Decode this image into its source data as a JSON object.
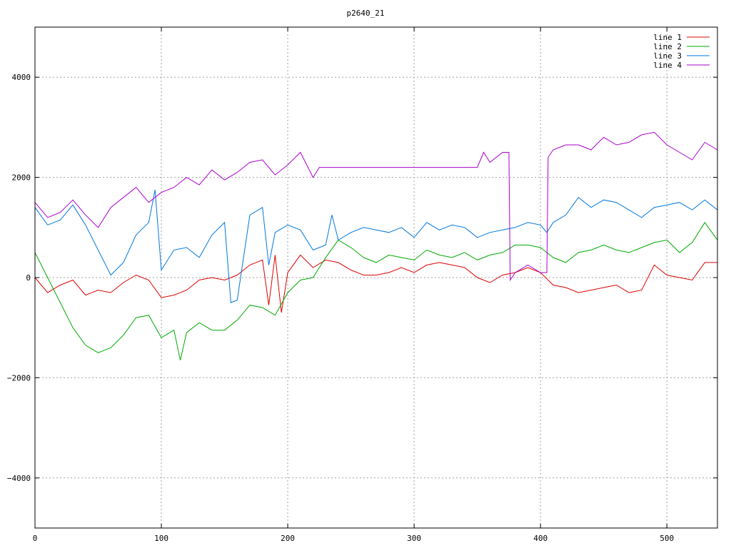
{
  "chart_data": {
    "type": "line",
    "title": "p2640_21",
    "xlabel": "",
    "ylabel": "",
    "xlim": [
      0,
      540
    ],
    "ylim": [
      -5000,
      5000
    ],
    "grid": true,
    "legend_position": "top-right",
    "x_ticks": [
      0,
      100,
      200,
      300,
      400,
      500
    ],
    "y_ticks": [
      -4000,
      -2000,
      0,
      2000,
      4000
    ],
    "x_tick_labels": [
      "0",
      "100",
      "200",
      "300",
      "400",
      "500"
    ],
    "y_tick_labels": [
      "−4000",
      "−2000",
      "0",
      "2000",
      "4000"
    ],
    "series": [
      {
        "name": "line 1",
        "color": "#dd0000",
        "points": [
          [
            0,
            0
          ],
          [
            10,
            -300
          ],
          [
            20,
            -150
          ],
          [
            30,
            -50
          ],
          [
            40,
            -350
          ],
          [
            50,
            -250
          ],
          [
            60,
            -300
          ],
          [
            70,
            -100
          ],
          [
            80,
            50
          ],
          [
            90,
            -50
          ],
          [
            100,
            -400
          ],
          [
            110,
            -350
          ],
          [
            120,
            -250
          ],
          [
            130,
            -50
          ],
          [
            140,
            0
          ],
          [
            150,
            -50
          ],
          [
            160,
            50
          ],
          [
            170,
            250
          ],
          [
            180,
            350
          ],
          [
            185,
            -550
          ],
          [
            190,
            450
          ],
          [
            195,
            -700
          ],
          [
            200,
            100
          ],
          [
            210,
            450
          ],
          [
            220,
            200
          ],
          [
            230,
            350
          ],
          [
            240,
            300
          ],
          [
            250,
            150
          ],
          [
            260,
            50
          ],
          [
            270,
            50
          ],
          [
            280,
            100
          ],
          [
            290,
            200
          ],
          [
            300,
            100
          ],
          [
            310,
            250
          ],
          [
            320,
            300
          ],
          [
            330,
            250
          ],
          [
            340,
            200
          ],
          [
            350,
            0
          ],
          [
            360,
            -100
          ],
          [
            370,
            50
          ],
          [
            380,
            100
          ],
          [
            390,
            200
          ],
          [
            400,
            100
          ],
          [
            410,
            -150
          ],
          [
            420,
            -200
          ],
          [
            430,
            -300
          ],
          [
            440,
            -250
          ],
          [
            450,
            -200
          ],
          [
            460,
            -150
          ],
          [
            470,
            -300
          ],
          [
            480,
            -250
          ],
          [
            490,
            250
          ],
          [
            500,
            50
          ],
          [
            510,
            0
          ],
          [
            520,
            -50
          ],
          [
            530,
            300
          ],
          [
            540,
            300
          ]
        ]
      },
      {
        "name": "line 2",
        "color": "#00aa00",
        "points": [
          [
            0,
            500
          ],
          [
            10,
            0
          ],
          [
            20,
            -500
          ],
          [
            30,
            -1000
          ],
          [
            40,
            -1350
          ],
          [
            50,
            -1500
          ],
          [
            60,
            -1400
          ],
          [
            70,
            -1150
          ],
          [
            80,
            -800
          ],
          [
            90,
            -750
          ],
          [
            100,
            -1200
          ],
          [
            110,
            -1050
          ],
          [
            115,
            -1650
          ],
          [
            120,
            -1100
          ],
          [
            130,
            -900
          ],
          [
            140,
            -1050
          ],
          [
            150,
            -1050
          ],
          [
            160,
            -850
          ],
          [
            170,
            -550
          ],
          [
            180,
            -600
          ],
          [
            190,
            -750
          ],
          [
            200,
            -300
          ],
          [
            210,
            -50
          ],
          [
            220,
            0
          ],
          [
            230,
            400
          ],
          [
            240,
            750
          ],
          [
            250,
            600
          ],
          [
            260,
            400
          ],
          [
            270,
            300
          ],
          [
            280,
            450
          ],
          [
            290,
            400
          ],
          [
            300,
            350
          ],
          [
            310,
            550
          ],
          [
            320,
            450
          ],
          [
            330,
            400
          ],
          [
            340,
            500
          ],
          [
            350,
            350
          ],
          [
            360,
            450
          ],
          [
            370,
            500
          ],
          [
            380,
            650
          ],
          [
            390,
            650
          ],
          [
            400,
            600
          ],
          [
            410,
            400
          ],
          [
            420,
            300
          ],
          [
            430,
            500
          ],
          [
            440,
            550
          ],
          [
            450,
            650
          ],
          [
            460,
            550
          ],
          [
            470,
            500
          ],
          [
            480,
            600
          ],
          [
            490,
            700
          ],
          [
            500,
            750
          ],
          [
            510,
            500
          ],
          [
            520,
            700
          ],
          [
            530,
            1100
          ],
          [
            540,
            750
          ]
        ]
      },
      {
        "name": "line 3",
        "color": "#0077dd",
        "points": [
          [
            0,
            1400
          ],
          [
            10,
            1050
          ],
          [
            20,
            1150
          ],
          [
            30,
            1450
          ],
          [
            40,
            1050
          ],
          [
            50,
            550
          ],
          [
            60,
            50
          ],
          [
            70,
            300
          ],
          [
            80,
            850
          ],
          [
            90,
            1100
          ],
          [
            95,
            1750
          ],
          [
            100,
            150
          ],
          [
            110,
            550
          ],
          [
            120,
            600
          ],
          [
            130,
            400
          ],
          [
            140,
            850
          ],
          [
            150,
            1100
          ],
          [
            155,
            -500
          ],
          [
            160,
            -450
          ],
          [
            170,
            1250
          ],
          [
            180,
            1400
          ],
          [
            185,
            250
          ],
          [
            190,
            900
          ],
          [
            200,
            1050
          ],
          [
            210,
            950
          ],
          [
            220,
            550
          ],
          [
            230,
            650
          ],
          [
            235,
            1250
          ],
          [
            240,
            750
          ],
          [
            250,
            900
          ],
          [
            260,
            1000
          ],
          [
            270,
            950
          ],
          [
            280,
            900
          ],
          [
            290,
            1000
          ],
          [
            300,
            800
          ],
          [
            310,
            1100
          ],
          [
            320,
            950
          ],
          [
            330,
            1050
          ],
          [
            340,
            1000
          ],
          [
            350,
            800
          ],
          [
            360,
            900
          ],
          [
            370,
            950
          ],
          [
            380,
            1000
          ],
          [
            390,
            1100
          ],
          [
            400,
            1050
          ],
          [
            405,
            900
          ],
          [
            410,
            1100
          ],
          [
            420,
            1250
          ],
          [
            430,
            1600
          ],
          [
            440,
            1400
          ],
          [
            450,
            1550
          ],
          [
            460,
            1500
          ],
          [
            470,
            1350
          ],
          [
            480,
            1200
          ],
          [
            490,
            1400
          ],
          [
            500,
            1450
          ],
          [
            510,
            1500
          ],
          [
            520,
            1350
          ],
          [
            530,
            1550
          ],
          [
            540,
            1350
          ]
        ]
      },
      {
        "name": "line 4",
        "color": "#aa00cc",
        "points": [
          [
            0,
            1500
          ],
          [
            10,
            1200
          ],
          [
            20,
            1300
          ],
          [
            30,
            1550
          ],
          [
            40,
            1250
          ],
          [
            50,
            1000
          ],
          [
            60,
            1400
          ],
          [
            70,
            1600
          ],
          [
            80,
            1800
          ],
          [
            90,
            1500
          ],
          [
            100,
            1700
          ],
          [
            110,
            1800
          ],
          [
            120,
            2000
          ],
          [
            130,
            1850
          ],
          [
            140,
            2150
          ],
          [
            150,
            1950
          ],
          [
            160,
            2100
          ],
          [
            170,
            2300
          ],
          [
            180,
            2350
          ],
          [
            190,
            2050
          ],
          [
            200,
            2250
          ],
          [
            210,
            2500
          ],
          [
            220,
            2000
          ],
          [
            225,
            2200
          ],
          [
            230,
            2200
          ],
          [
            280,
            2200
          ],
          [
            330,
            2200
          ],
          [
            350,
            2200
          ],
          [
            355,
            2500
          ],
          [
            360,
            2300
          ],
          [
            370,
            2500
          ],
          [
            375,
            2500
          ],
          [
            376,
            -50
          ],
          [
            380,
            100
          ],
          [
            390,
            250
          ],
          [
            400,
            100
          ],
          [
            405,
            100
          ],
          [
            406,
            2400
          ],
          [
            410,
            2550
          ],
          [
            420,
            2650
          ],
          [
            430,
            2650
          ],
          [
            440,
            2550
          ],
          [
            450,
            2800
          ],
          [
            460,
            2650
          ],
          [
            470,
            2700
          ],
          [
            480,
            2850
          ],
          [
            490,
            2900
          ],
          [
            500,
            2650
          ],
          [
            510,
            2500
          ],
          [
            520,
            2350
          ],
          [
            530,
            2700
          ],
          [
            540,
            2550
          ]
        ]
      }
    ]
  }
}
